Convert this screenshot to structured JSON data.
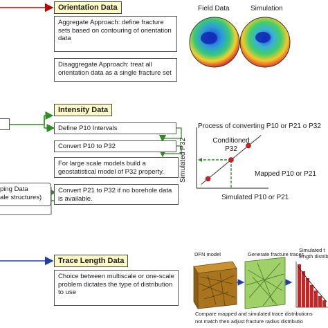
{
  "orientation": {
    "header": "Orientation Data",
    "box1": "Aggregate Approach: define fracture sets based on contouring of orientation data",
    "box2": "Disaggregate Approach: treat all orientation data as a single fracture set",
    "label_field": "Field Data",
    "label_sim": "Simulation"
  },
  "intensity": {
    "header": "Intensity Data",
    "steps": [
      "Define P10 Intervals",
      "Convert P10 to P32",
      "For large scale models build a geostatistical model of P32 property.",
      "Convert P21 to P32 if no borehole data is available."
    ],
    "left_box_line1": "ping Data",
    "left_box_line2": "ale structures)"
  },
  "chart_data": {
    "type": "scatter",
    "title": "Process of converting P10 or P21 o P32",
    "xlabel": "Simulated P10 or P21",
    "ylabel": "Simulated P32",
    "annotations": [
      "Conditioned P32",
      "Mapped P10 or P21"
    ],
    "points": [
      {
        "x": 1.0,
        "y": 1.0
      },
      {
        "x": 3.0,
        "y": 3.0
      },
      {
        "x": 4.5,
        "y": 4.5
      }
    ],
    "xlim": [
      0,
      6
    ],
    "ylim": [
      0,
      6
    ]
  },
  "trace": {
    "header": "Trace Length Data",
    "box": "Choice between multiscale or one-scale problem dictates the type of distribution to use",
    "label_dfn": "DFN model",
    "label_gen": "Generate fracture traces",
    "label_sim1": "Simulated t",
    "label_sim2": "length distribu",
    "caption1": "Compare mapped and simulated trace distributions",
    "caption2": "not match then adjust fracture radius distributio"
  },
  "colors": {
    "header_bg": "#fffbc7",
    "arrow_red": "#c00000",
    "arrow_green": "#2e8b22",
    "arrow_blue": "#1f3fa8",
    "point_red": "#d42020"
  }
}
